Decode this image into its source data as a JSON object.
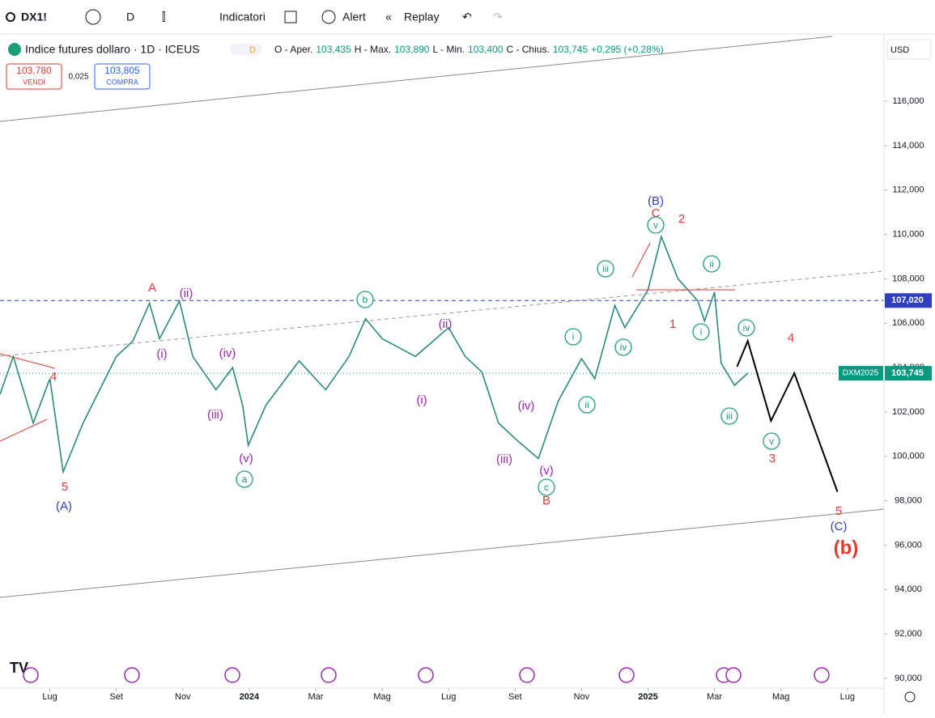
{
  "ui": {
    "symbol": "DX1!",
    "interval": "D",
    "indicators": "Indicatori",
    "alert": "Alert",
    "replay": "Replay",
    "instrument": "Indice futures dollaro · 1D · ICEUS",
    "badge": "D",
    "ohlc": [
      "O - Aper.",
      "103,435",
      "H - Max.",
      "103,890",
      "L - Min.",
      "103,400",
      "C - Chius.",
      "103,745",
      "+0,295 (+0,28%)"
    ],
    "sell": "103,780",
    "sell_label": "VENDI",
    "spread": "0,025",
    "buy": "103,805",
    "buy_label": "COMPRA",
    "currency": "USD",
    "level_label": "107,020",
    "contract_label": "DXM2025",
    "last_label": "103,745"
  },
  "chart_data": {
    "type": "line",
    "level": 107.02,
    "last": 103.745,
    "xlim": [
      -1.5,
      25.1
    ],
    "ylim": [
      89.56,
      119.03
    ],
    "xticks": [
      {
        "value": 0,
        "label": "Lug"
      },
      {
        "value": 2,
        "label": "Set"
      },
      {
        "value": 4,
        "label": "Nov"
      },
      {
        "value": 6,
        "label": "2024"
      },
      {
        "value": 8,
        "label": "Mar"
      },
      {
        "value": 10,
        "label": "Mag"
      },
      {
        "value": 12,
        "label": "Lug"
      },
      {
        "value": 14,
        "label": "Set"
      },
      {
        "value": 16,
        "label": "Nov"
      },
      {
        "value": 18,
        "label": "2025"
      },
      {
        "value": 20,
        "label": "Mar"
      },
      {
        "value": 22,
        "label": "Mag"
      },
      {
        "value": 24,
        "label": "Lug"
      }
    ],
    "yticks": [
      {
        "value": 90,
        "label": "90,000"
      },
      {
        "value": 92,
        "label": "92,000"
      },
      {
        "value": 94,
        "label": "94,000"
      },
      {
        "value": 96,
        "label": "96,000"
      },
      {
        "value": 98,
        "label": "98,000"
      },
      {
        "value": 100,
        "label": "100,000"
      },
      {
        "value": 102,
        "label": "102,000"
      },
      {
        "value": 104,
        "label": "104,000"
      },
      {
        "value": 106,
        "label": "106,000"
      },
      {
        "value": 108,
        "label": "108,000"
      },
      {
        "value": 110,
        "label": "110,000"
      },
      {
        "value": 112,
        "label": "112,000"
      },
      {
        "value": 114,
        "label": "114,000"
      },
      {
        "value": 116,
        "label": "116,000"
      }
    ],
    "series": [
      {
        "color": "#2a8a7e",
        "x": [
          -1.5,
          -1.1,
          -0.5,
          0,
          0.4,
          1,
          2,
          2.5,
          3,
          3.3,
          3.9,
          4.3,
          5,
          5.5,
          5.8,
          5.97,
          6.5,
          7.5,
          8.3,
          9,
          9.5,
          10,
          11,
          12,
          12.5,
          13,
          13.5,
          14,
          14.7,
          15.3,
          16,
          16.4,
          17,
          17.3,
          18,
          18.4,
          18.9,
          19.5,
          19.7,
          20,
          20.2,
          20.6,
          21
        ],
        "values": [
          102.8,
          104.5,
          101.5,
          103.5,
          99.3,
          101.5,
          104.5,
          105.2,
          106.9,
          105.3,
          107,
          104.5,
          103,
          104,
          102.3,
          100.5,
          102.3,
          104.3,
          103,
          104.5,
          106.2,
          105.3,
          104.5,
          105.8,
          104.5,
          103.8,
          101.5,
          100.8,
          99.9,
          102.5,
          104.4,
          103.5,
          106.8,
          105.8,
          107.5,
          109.9,
          108,
          107,
          106.1,
          107.4,
          104.2,
          103.2,
          103.745
        ]
      },
      {
        "color": "#000000",
        "x": [
          20.68,
          21,
          21.7,
          22.4,
          23.7
        ],
        "values": [
          104.04,
          105.2,
          101.6,
          103.75,
          98.4
        ]
      }
    ],
    "annotations": [
      {
        "text": "4",
        "color": "#e53935"
      },
      {
        "text": "5",
        "color": "#e53935"
      },
      {
        "text": "A",
        "color": "#e53935"
      },
      {
        "text": "B",
        "color": "#e53935"
      },
      {
        "text": "C",
        "color": "#e53935"
      },
      {
        "text": "2",
        "color": "#e53935"
      },
      {
        "text": "1",
        "color": "#e53935"
      },
      {
        "text": "4",
        "color": "#e53935"
      },
      {
        "text": "3",
        "color": "#e53935"
      },
      {
        "text": "5",
        "color": "#e53935"
      },
      {
        "text": "(b)",
        "color": "#e53935"
      },
      {
        "text": "(A)",
        "color": "#2f3fbf"
      },
      {
        "text": "(B)",
        "color": "#2f3fbf"
      },
      {
        "text": "(C)",
        "color": "#2f3fbf"
      },
      {
        "text": "(ii)",
        "color": "#9c27b0"
      },
      {
        "text": "(i)",
        "color": "#9c27b0"
      },
      {
        "text": "(iv)",
        "color": "#9c27b0"
      },
      {
        "text": "(iii)",
        "color": "#9c27b0"
      },
      {
        "text": "(v)",
        "color": "#9c27b0"
      },
      {
        "text": "(ii)",
        "color": "#9c27b0"
      },
      {
        "text": "(i)",
        "color": "#9c27b0"
      },
      {
        "text": "(iv)",
        "color": "#9c27b0"
      },
      {
        "text": "(iii)",
        "color": "#9c27b0"
      },
      {
        "text": "(v)",
        "color": "#9c27b0"
      },
      {
        "text": "a",
        "color": "#1b9e77",
        "circled": true
      },
      {
        "text": "b",
        "color": "#1b9e77",
        "circled": true
      },
      {
        "text": "c",
        "color": "#1b9e77",
        "circled": true
      },
      {
        "text": "iii",
        "color": "#1b9e77",
        "circled": true
      },
      {
        "text": "i",
        "color": "#1b9e77",
        "circled": true
      },
      {
        "text": "iv",
        "color": "#1b9e77",
        "circled": true
      },
      {
        "text": "ii",
        "color": "#1b9e77",
        "circled": true
      },
      {
        "text": "v",
        "color": "#1b9e77",
        "circled": true
      },
      {
        "text": "ii",
        "color": "#1b9e77",
        "circled": true
      },
      {
        "text": "i",
        "color": "#1b9e77",
        "circled": true
      },
      {
        "text": "iv",
        "color": "#1b9e77",
        "circled": true
      },
      {
        "text": "iii",
        "color": "#1b9e77",
        "circled": true
      },
      {
        "text": "v",
        "color": "#1b9e77",
        "circled": true
      }
    ]
  }
}
